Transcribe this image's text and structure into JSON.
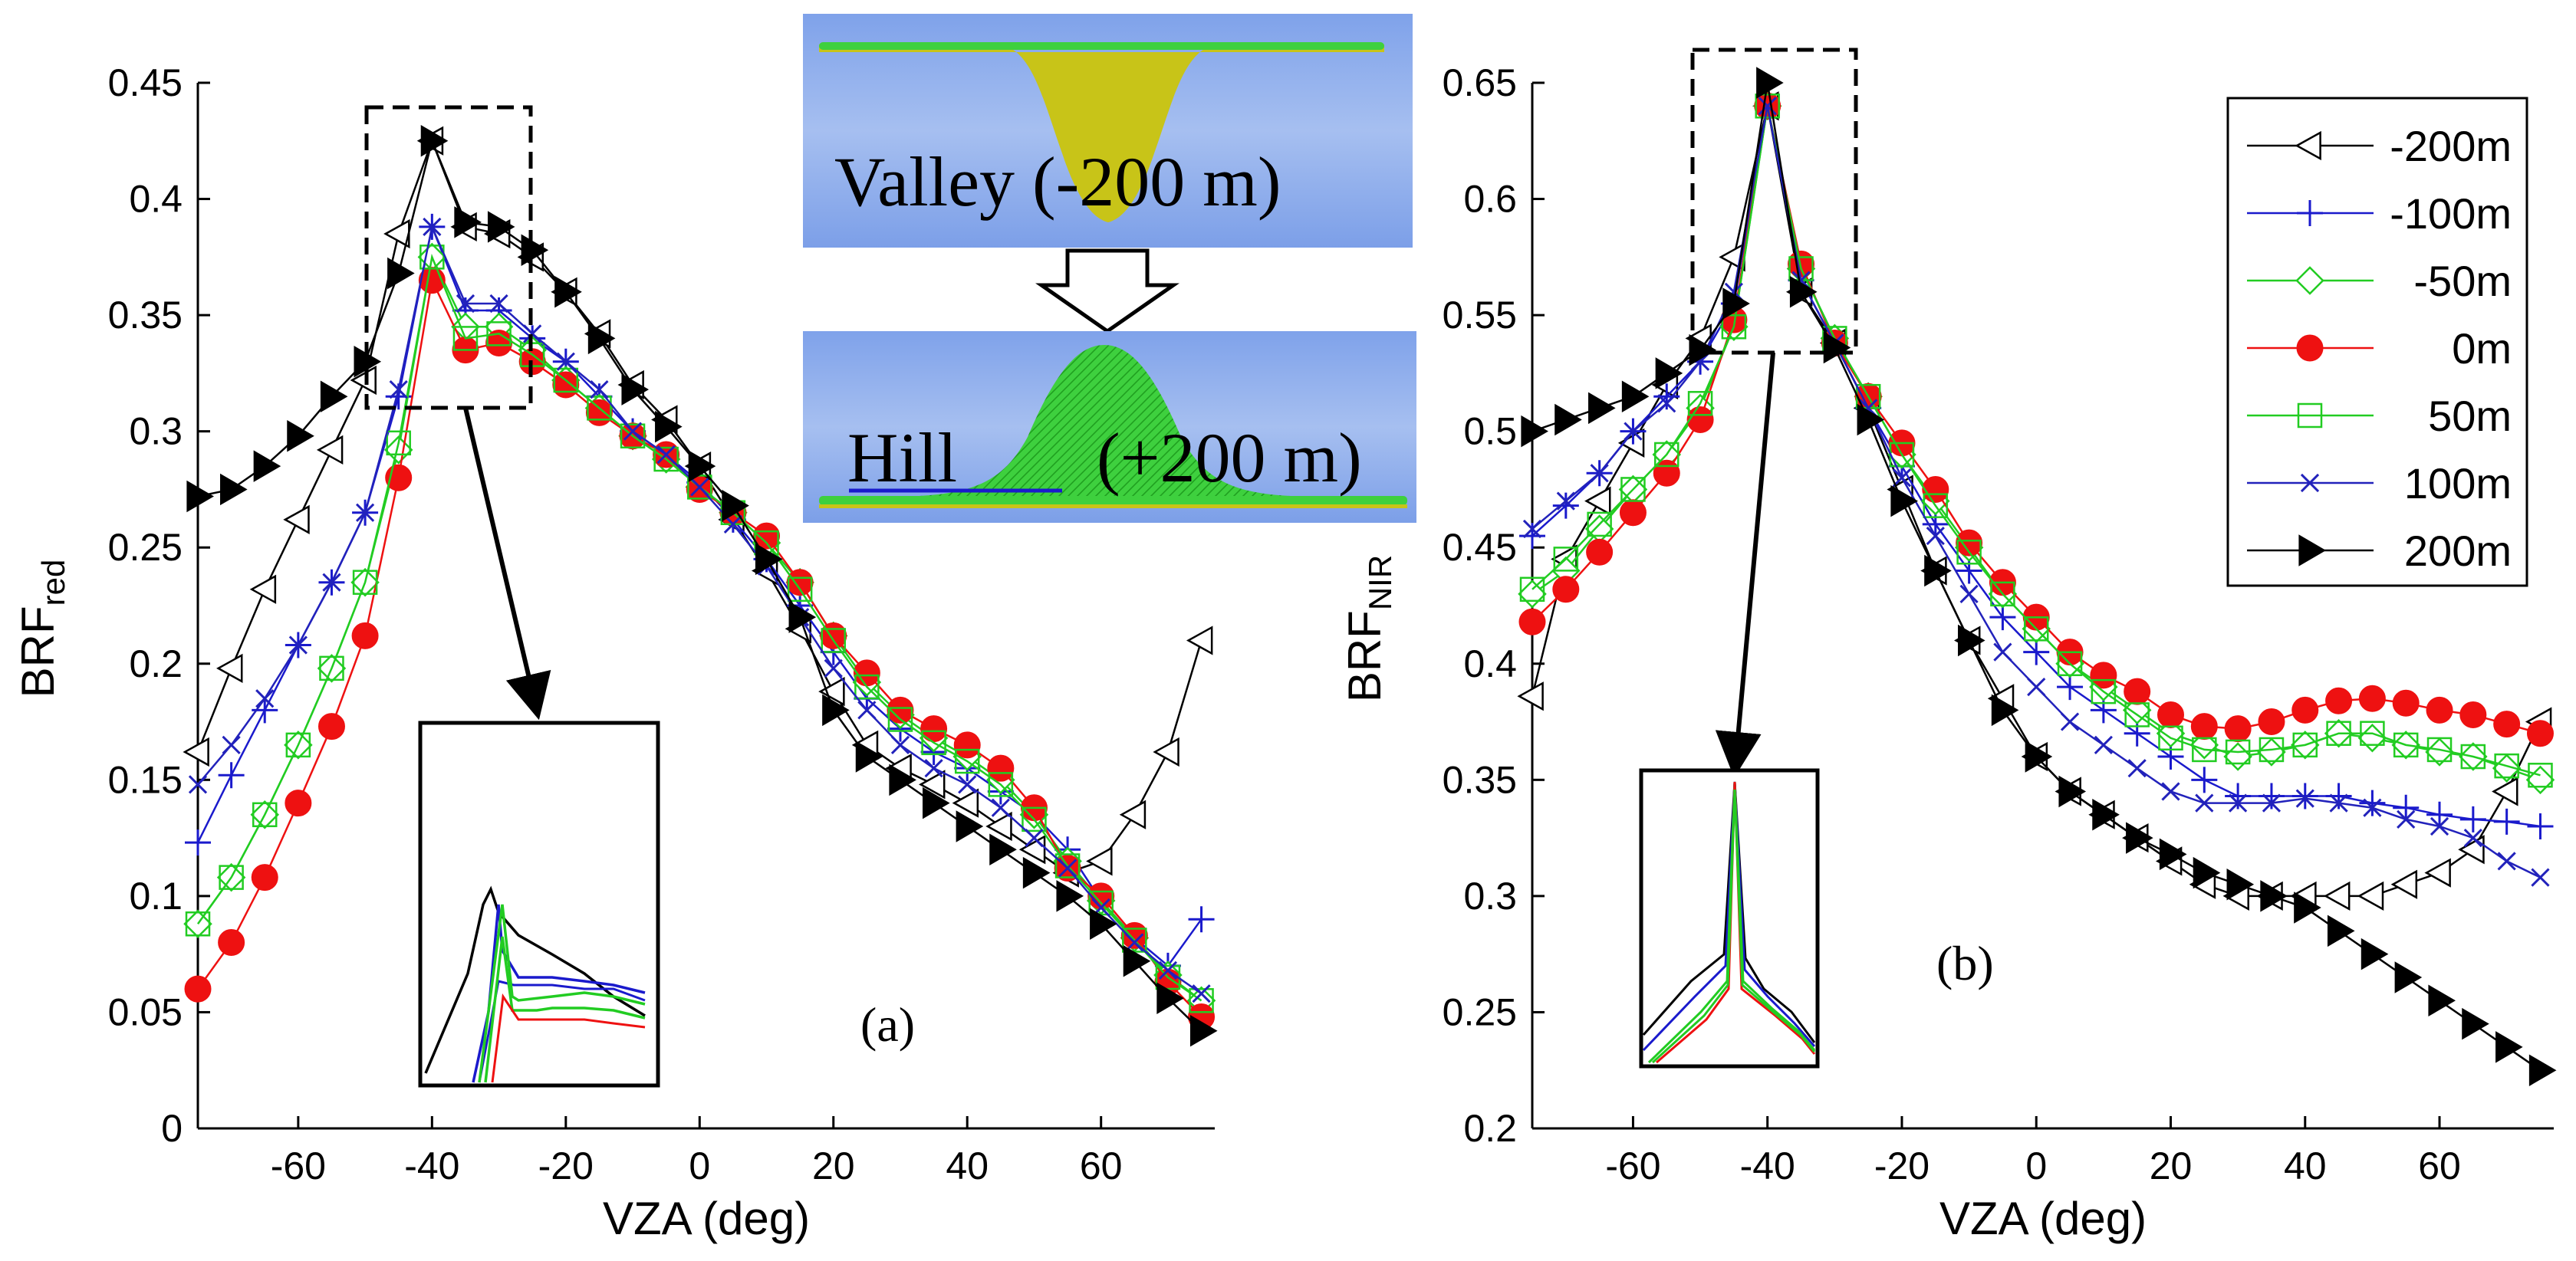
{
  "chart_data": [
    {
      "type": "line",
      "id": "a",
      "panel_label": "(a)",
      "xlabel": "VZA (deg)",
      "ylabel": "BRF",
      "ylabel_sub": "red",
      "xlim": [
        -75,
        77
      ],
      "ylim": [
        0,
        0.45
      ],
      "xticks": [
        -60,
        -40,
        -20,
        0,
        20,
        40,
        60
      ],
      "yticks": [
        0,
        0.05,
        0.1,
        0.15,
        0.2,
        0.25,
        0.3,
        0.35,
        0.4,
        0.45
      ],
      "ytick_labels": [
        "0",
        "0.05",
        "0.1",
        "0.15",
        "0.2",
        "0.25",
        "0.3",
        "0.35",
        "0.4",
        "0.45"
      ],
      "series": [
        {
          "name": "-200m",
          "color": "#000000",
          "marker": "triangle-left-open",
          "x": [
            -75,
            -70,
            -65,
            -60,
            -55,
            -50,
            -45,
            -40,
            -35,
            -30,
            -25,
            -20,
            -15,
            -10,
            -5,
            0,
            5,
            10,
            15,
            20,
            25,
            30,
            35,
            40,
            45,
            50,
            55,
            60,
            65,
            70,
            75
          ],
          "y": [
            0.162,
            0.198,
            0.232,
            0.262,
            0.292,
            0.322,
            0.385,
            0.425,
            0.388,
            0.385,
            0.375,
            0.36,
            0.342,
            0.32,
            0.305,
            0.285,
            0.262,
            0.24,
            0.215,
            0.188,
            0.165,
            0.155,
            0.148,
            0.14,
            0.13,
            0.12,
            0.11,
            0.115,
            0.135,
            0.162,
            0.21
          ]
        },
        {
          "name": "-100m",
          "color": "#1a1acc",
          "marker": "plus",
          "x": [
            -75,
            -70,
            -65,
            -60,
            -55,
            -50,
            -45,
            -40,
            -35,
            -30,
            -25,
            -20,
            -15,
            -10,
            -5,
            0,
            5,
            10,
            15,
            20,
            25,
            30,
            35,
            40,
            45,
            50,
            55,
            60,
            65,
            70,
            75
          ],
          "y": [
            0.123,
            0.152,
            0.18,
            0.208,
            0.235,
            0.265,
            0.315,
            0.388,
            0.352,
            0.352,
            0.34,
            0.33,
            0.315,
            0.3,
            0.29,
            0.278,
            0.262,
            0.245,
            0.225,
            0.205,
            0.185,
            0.172,
            0.162,
            0.155,
            0.145,
            0.135,
            0.12,
            0.098,
            0.082,
            0.07,
            0.09
          ]
        },
        {
          "name": "-50m",
          "color": "#22cc22",
          "marker": "diamond-open",
          "x": [
            -75,
            -70,
            -65,
            -60,
            -55,
            -50,
            -45,
            -40,
            -35,
            -30,
            -25,
            -20,
            -15,
            -10,
            -5,
            0,
            5,
            10,
            15,
            20,
            25,
            30,
            35,
            40,
            45,
            50,
            55,
            60,
            65,
            70,
            75
          ],
          "y": [
            0.088,
            0.108,
            0.135,
            0.165,
            0.198,
            0.235,
            0.292,
            0.375,
            0.345,
            0.345,
            0.335,
            0.322,
            0.31,
            0.298,
            0.288,
            0.276,
            0.265,
            0.252,
            0.235,
            0.212,
            0.192,
            0.178,
            0.168,
            0.16,
            0.15,
            0.135,
            0.115,
            0.098,
            0.082,
            0.066,
            0.055
          ]
        },
        {
          "name": "0m",
          "color": "#ee1111",
          "marker": "circle-filled",
          "x": [
            -75,
            -70,
            -65,
            -60,
            -55,
            -50,
            -45,
            -40,
            -35,
            -30,
            -25,
            -20,
            -15,
            -10,
            -5,
            0,
            5,
            10,
            15,
            20,
            25,
            30,
            35,
            40,
            45,
            50,
            55,
            60,
            65,
            70,
            75
          ],
          "y": [
            0.06,
            0.08,
            0.108,
            0.14,
            0.173,
            0.212,
            0.28,
            0.365,
            0.335,
            0.338,
            0.33,
            0.32,
            0.308,
            0.298,
            0.29,
            0.275,
            0.265,
            0.255,
            0.235,
            0.212,
            0.196,
            0.18,
            0.172,
            0.165,
            0.155,
            0.138,
            0.112,
            0.1,
            0.083,
            0.063,
            0.048
          ]
        },
        {
          "name": "50m",
          "color": "#22cc22",
          "marker": "square-open",
          "x": [
            -75,
            -70,
            -65,
            -60,
            -55,
            -50,
            -45,
            -40,
            -35,
            -30,
            -25,
            -20,
            -15,
            -10,
            -5,
            0,
            5,
            10,
            15,
            20,
            25,
            30,
            35,
            40,
            45,
            50,
            55,
            60,
            65,
            70,
            75
          ],
          "y": [
            0.088,
            0.108,
            0.135,
            0.165,
            0.198,
            0.235,
            0.295,
            0.375,
            0.34,
            0.342,
            0.333,
            0.322,
            0.31,
            0.298,
            0.288,
            0.276,
            0.265,
            0.252,
            0.232,
            0.21,
            0.19,
            0.176,
            0.166,
            0.158,
            0.148,
            0.133,
            0.113,
            0.097,
            0.081,
            0.065,
            0.055
          ]
        },
        {
          "name": "100m",
          "color": "#2222bb",
          "marker": "x",
          "x": [
            -75,
            -70,
            -65,
            -60,
            -55,
            -50,
            -45,
            -40,
            -35,
            -30,
            -25,
            -20,
            -15,
            -10,
            -5,
            0,
            5,
            10,
            15,
            20,
            25,
            30,
            35,
            40,
            45,
            50,
            55,
            60,
            65,
            70,
            75
          ],
          "y": [
            0.148,
            0.165,
            0.185,
            0.208,
            0.235,
            0.265,
            0.318,
            0.388,
            0.355,
            0.355,
            0.342,
            0.33,
            0.318,
            0.3,
            0.29,
            0.276,
            0.26,
            0.242,
            0.22,
            0.198,
            0.18,
            0.165,
            0.155,
            0.148,
            0.138,
            0.125,
            0.112,
            0.095,
            0.08,
            0.068,
            0.058
          ]
        },
        {
          "name": "200m",
          "color": "#000000",
          "marker": "triangle-right-filled",
          "x": [
            -75,
            -70,
            -65,
            -60,
            -55,
            -50,
            -45,
            -40,
            -35,
            -30,
            -25,
            -20,
            -15,
            -10,
            -5,
            0,
            5,
            10,
            15,
            20,
            25,
            30,
            35,
            40,
            45,
            50,
            55,
            60,
            65,
            70,
            75
          ],
          "y": [
            0.272,
            0.275,
            0.285,
            0.298,
            0.315,
            0.33,
            0.368,
            0.425,
            0.39,
            0.388,
            0.378,
            0.36,
            0.34,
            0.318,
            0.302,
            0.285,
            0.268,
            0.245,
            0.22,
            0.18,
            0.16,
            0.15,
            0.14,
            0.13,
            0.12,
            0.11,
            0.1,
            0.088,
            0.072,
            0.056,
            0.042
          ]
        }
      ]
    },
    {
      "type": "line",
      "id": "b",
      "panel_label": "(b)",
      "xlabel": "VZA (deg)",
      "ylabel": "BRF",
      "ylabel_sub": "NIR",
      "xlim": [
        -75,
        77
      ],
      "ylim": [
        0.2,
        0.65
      ],
      "xticks": [
        -60,
        -40,
        -20,
        0,
        20,
        40,
        60
      ],
      "yticks": [
        0.2,
        0.25,
        0.3,
        0.35,
        0.4,
        0.45,
        0.5,
        0.55,
        0.6,
        0.65
      ],
      "ytick_labels": [
        "0.2",
        "0.25",
        "0.3",
        "0.35",
        "0.4",
        "0.45",
        "0.5",
        "0.55",
        "0.6",
        "0.65"
      ],
      "series": [
        {
          "name": "-200m",
          "color": "#000000",
          "marker": "triangle-left-open",
          "x": [
            -75,
            -70,
            -65,
            -60,
            -55,
            -50,
            -45,
            -40,
            -35,
            -30,
            -25,
            -20,
            -15,
            -10,
            -5,
            0,
            5,
            10,
            15,
            20,
            25,
            30,
            35,
            40,
            45,
            50,
            55,
            60,
            65,
            70,
            75
          ],
          "y": [
            0.386,
            0.445,
            0.47,
            0.495,
            0.52,
            0.54,
            0.575,
            0.64,
            0.56,
            0.538,
            0.51,
            0.475,
            0.44,
            0.41,
            0.385,
            0.36,
            0.345,
            0.335,
            0.325,
            0.315,
            0.305,
            0.3,
            0.3,
            0.3,
            0.3,
            0.3,
            0.305,
            0.31,
            0.32,
            0.345,
            0.375
          ]
        },
        {
          "name": "-100m",
          "color": "#1a1acc",
          "marker": "plus",
          "x": [
            -75,
            -70,
            -65,
            -60,
            -55,
            -50,
            -45,
            -40,
            -35,
            -30,
            -25,
            -20,
            -15,
            -10,
            -5,
            0,
            5,
            10,
            15,
            20,
            25,
            30,
            35,
            40,
            45,
            50,
            55,
            60,
            65,
            70,
            75
          ],
          "y": [
            0.455,
            0.468,
            0.482,
            0.5,
            0.515,
            0.53,
            0.555,
            0.64,
            0.565,
            0.538,
            0.51,
            0.485,
            0.46,
            0.44,
            0.42,
            0.405,
            0.39,
            0.38,
            0.37,
            0.36,
            0.35,
            0.343,
            0.343,
            0.343,
            0.343,
            0.34,
            0.338,
            0.335,
            0.333,
            0.332,
            0.33
          ]
        },
        {
          "name": "-50m",
          "color": "#22cc22",
          "marker": "diamond-open",
          "x": [
            -75,
            -70,
            -65,
            -60,
            -55,
            -50,
            -45,
            -40,
            -35,
            -30,
            -25,
            -20,
            -15,
            -10,
            -5,
            0,
            5,
            10,
            15,
            20,
            25,
            30,
            35,
            40,
            45,
            50,
            55,
            60,
            65,
            70,
            75
          ],
          "y": [
            0.43,
            0.44,
            0.458,
            0.475,
            0.49,
            0.51,
            0.545,
            0.64,
            0.57,
            0.54,
            0.515,
            0.49,
            0.47,
            0.45,
            0.43,
            0.415,
            0.4,
            0.39,
            0.38,
            0.37,
            0.365,
            0.36,
            0.362,
            0.365,
            0.37,
            0.368,
            0.365,
            0.362,
            0.36,
            0.355,
            0.35
          ]
        },
        {
          "name": "0m",
          "color": "#ee1111",
          "marker": "circle-filled",
          "x": [
            -75,
            -70,
            -65,
            -60,
            -55,
            -50,
            -45,
            -40,
            -35,
            -30,
            -25,
            -20,
            -15,
            -10,
            -5,
            0,
            5,
            10,
            15,
            20,
            25,
            30,
            35,
            40,
            45,
            50,
            55,
            60,
            65,
            70,
            75
          ],
          "y": [
            0.418,
            0.432,
            0.448,
            0.465,
            0.482,
            0.505,
            0.548,
            0.64,
            0.572,
            0.538,
            0.515,
            0.495,
            0.475,
            0.452,
            0.435,
            0.42,
            0.405,
            0.395,
            0.388,
            0.378,
            0.373,
            0.372,
            0.375,
            0.38,
            0.384,
            0.385,
            0.383,
            0.38,
            0.378,
            0.374,
            0.37
          ]
        },
        {
          "name": "50m",
          "color": "#22cc22",
          "marker": "square-open",
          "x": [
            -75,
            -70,
            -65,
            -60,
            -55,
            -50,
            -45,
            -40,
            -35,
            -30,
            -25,
            -20,
            -15,
            -10,
            -5,
            0,
            5,
            10,
            15,
            20,
            25,
            30,
            35,
            40,
            45,
            50,
            55,
            60,
            65,
            70,
            75
          ],
          "y": [
            0.432,
            0.445,
            0.46,
            0.475,
            0.49,
            0.512,
            0.545,
            0.64,
            0.57,
            0.54,
            0.515,
            0.49,
            0.468,
            0.448,
            0.43,
            0.415,
            0.4,
            0.388,
            0.378,
            0.368,
            0.363,
            0.362,
            0.363,
            0.365,
            0.37,
            0.37,
            0.365,
            0.363,
            0.36,
            0.356,
            0.352
          ]
        },
        {
          "name": "100m",
          "color": "#2222bb",
          "marker": "x",
          "x": [
            -75,
            -70,
            -65,
            -60,
            -55,
            -50,
            -45,
            -40,
            -35,
            -30,
            -25,
            -20,
            -15,
            -10,
            -5,
            0,
            5,
            10,
            15,
            20,
            25,
            30,
            35,
            40,
            45,
            50,
            55,
            60,
            65,
            70,
            75
          ],
          "y": [
            0.458,
            0.47,
            0.482,
            0.5,
            0.512,
            0.53,
            0.56,
            0.64,
            0.565,
            0.538,
            0.51,
            0.48,
            0.455,
            0.43,
            0.405,
            0.39,
            0.375,
            0.365,
            0.355,
            0.345,
            0.34,
            0.34,
            0.34,
            0.342,
            0.34,
            0.338,
            0.333,
            0.33,
            0.325,
            0.315,
            0.308
          ]
        },
        {
          "name": "200m",
          "color": "#000000",
          "marker": "triangle-right-filled",
          "x": [
            -75,
            -70,
            -65,
            -60,
            -55,
            -50,
            -45,
            -40,
            -35,
            -30,
            -25,
            -20,
            -15,
            -10,
            -5,
            0,
            5,
            10,
            15,
            20,
            25,
            30,
            35,
            40,
            45,
            50,
            55,
            60,
            65,
            70,
            75
          ],
          "y": [
            0.5,
            0.505,
            0.51,
            0.515,
            0.525,
            0.535,
            0.555,
            0.65,
            0.56,
            0.536,
            0.505,
            0.47,
            0.44,
            0.41,
            0.38,
            0.36,
            0.345,
            0.335,
            0.325,
            0.318,
            0.31,
            0.305,
            0.3,
            0.295,
            0.285,
            0.275,
            0.265,
            0.255,
            0.245,
            0.235,
            0.225
          ]
        }
      ]
    }
  ],
  "legend": {
    "entries": [
      "-200m",
      "-100m",
      "-50m",
      "0m",
      "50m",
      "100m",
      "200m"
    ]
  },
  "terrain_inset": {
    "valley_label": "Valley (-200 m)",
    "hill_word": "Hill",
    "hill_height": "(+200 m)"
  }
}
